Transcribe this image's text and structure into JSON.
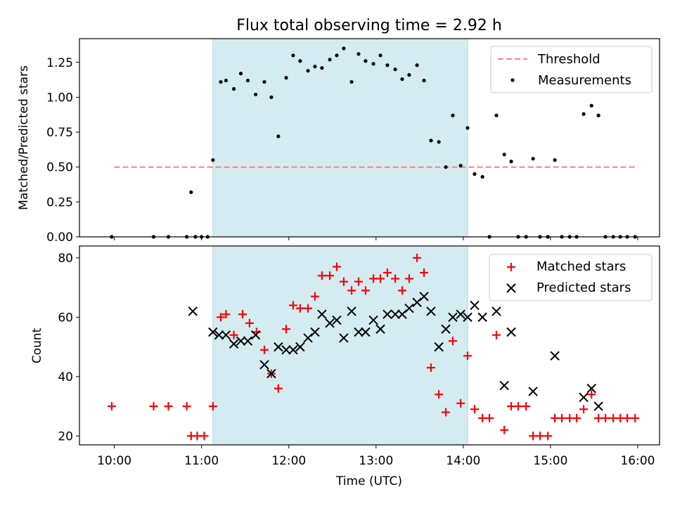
{
  "chart_data": [
    {
      "type": "scatter",
      "title": "Flux total observing time = 2.92 h",
      "xlabel": "",
      "ylabel": "Matched/Predicted stars",
      "ylim": [
        0,
        1.42
      ],
      "yticks": [
        "0.00",
        "0.25",
        "0.50",
        "0.75",
        "1.00",
        "1.25"
      ],
      "yticks_values": [
        0,
        0.25,
        0.5,
        0.75,
        1.0,
        1.25
      ],
      "xlim": [
        9.6,
        16.25
      ],
      "xticks_values": [
        10,
        11,
        12,
        13,
        14,
        15,
        16
      ],
      "shaded_interval": [
        11.13,
        14.05
      ],
      "shade_color": "#d4ebf1",
      "threshold": {
        "name": "Threshold",
        "value": 0.5,
        "x_range": [
          10.0,
          16.0
        ],
        "color": "#ff7f7f"
      },
      "series": [
        {
          "name": "Measurements",
          "color": "#000000",
          "x": [
            9.97,
            10.45,
            10.62,
            10.83,
            10.88,
            10.93,
            11.0,
            11.07,
            11.13,
            11.22,
            11.28,
            11.37,
            11.45,
            11.53,
            11.62,
            11.72,
            11.8,
            11.88,
            11.97,
            12.05,
            12.13,
            12.22,
            12.3,
            12.38,
            12.47,
            12.55,
            12.63,
            12.72,
            12.8,
            12.88,
            12.97,
            13.05,
            13.13,
            13.22,
            13.3,
            13.38,
            13.47,
            13.55,
            13.63,
            13.72,
            13.8,
            13.88,
            13.97,
            14.05,
            14.13,
            14.22,
            14.3,
            14.38,
            14.47,
            14.55,
            14.63,
            14.72,
            14.8,
            14.88,
            14.97,
            15.05,
            15.13,
            15.22,
            15.3,
            15.38,
            15.47,
            15.55,
            15.63,
            15.72,
            15.8,
            15.88,
            15.97
          ],
          "y": [
            0.0,
            0.0,
            0.0,
            0.0,
            0.32,
            0.0,
            0.0,
            0.0,
            0.55,
            1.11,
            1.12,
            1.06,
            1.17,
            1.12,
            1.02,
            1.11,
            1.0,
            0.72,
            1.14,
            1.3,
            1.26,
            1.19,
            1.22,
            1.21,
            1.27,
            1.3,
            1.35,
            1.11,
            1.31,
            1.26,
            1.24,
            1.3,
            1.23,
            1.2,
            1.13,
            1.16,
            1.23,
            1.12,
            0.69,
            0.68,
            0.5,
            0.87,
            0.51,
            0.78,
            0.45,
            0.43,
            0.0,
            0.87,
            0.59,
            0.54,
            0.0,
            0.0,
            0.56,
            0.0,
            0.0,
            0.55,
            0.0,
            0.0,
            0.0,
            0.88,
            0.94,
            0.87,
            0.0,
            0.0,
            0.0,
            0.0,
            0.0
          ]
        }
      ],
      "legend": {
        "placement": "top-right",
        "entries": [
          "Threshold",
          "Measurements"
        ]
      }
    },
    {
      "type": "scatter",
      "title": "",
      "xlabel": "Time (UTC)",
      "ylabel": "Count",
      "ylim": [
        17,
        84
      ],
      "yticks": [
        "20",
        "40",
        "60",
        "80"
      ],
      "yticks_values": [
        20,
        40,
        60,
        80
      ],
      "xlim": [
        9.6,
        16.25
      ],
      "xticks": [
        "10:00",
        "11:00",
        "12:00",
        "13:00",
        "14:00",
        "15:00",
        "16:00"
      ],
      "xticks_values": [
        10,
        11,
        12,
        13,
        14,
        15,
        16
      ],
      "shaded_interval": [
        11.13,
        14.05
      ],
      "series": [
        {
          "name": "Matched stars",
          "marker": "plus",
          "color": "#ff0000",
          "x": [
            9.97,
            10.45,
            10.62,
            10.83,
            10.88,
            10.95,
            11.03,
            11.13,
            11.22,
            11.28,
            11.37,
            11.47,
            11.55,
            11.63,
            11.72,
            11.8,
            11.88,
            11.97,
            12.05,
            12.13,
            12.22,
            12.3,
            12.38,
            12.47,
            12.55,
            12.63,
            12.72,
            12.8,
            12.88,
            12.97,
            13.05,
            13.13,
            13.22,
            13.3,
            13.38,
            13.47,
            13.55,
            13.63,
            13.72,
            13.8,
            13.88,
            13.97,
            14.05,
            14.13,
            14.22,
            14.3,
            14.38,
            14.47,
            14.55,
            14.63,
            14.72,
            14.8,
            14.88,
            14.97,
            15.05,
            15.13,
            15.22,
            15.3,
            15.38,
            15.47,
            15.55,
            15.63,
            15.72,
            15.8,
            15.88,
            15.97
          ],
          "y": [
            30,
            30,
            30,
            30,
            20,
            20,
            20,
            30,
            60,
            61,
            54,
            61,
            58,
            55,
            49,
            41,
            36,
            56,
            64,
            63,
            63,
            67,
            74,
            74,
            77,
            72,
            69,
            72,
            69,
            73,
            73,
            75,
            73,
            69,
            73,
            80,
            75,
            43,
            34,
            28,
            52,
            31,
            47,
            29,
            26,
            26,
            54,
            22,
            30,
            30,
            30,
            20,
            20,
            20,
            26,
            26,
            26,
            26,
            29,
            34,
            26,
            26,
            26,
            26,
            26,
            26
          ]
        },
        {
          "name": "Predicted stars",
          "marker": "x",
          "color": "#000000",
          "x": [
            10.9,
            11.13,
            11.2,
            11.28,
            11.37,
            11.45,
            11.53,
            11.62,
            11.72,
            11.8,
            11.88,
            11.97,
            12.05,
            12.13,
            12.22,
            12.3,
            12.38,
            12.47,
            12.55,
            12.63,
            12.72,
            12.8,
            12.88,
            12.97,
            13.05,
            13.13,
            13.22,
            13.3,
            13.38,
            13.47,
            13.55,
            13.63,
            13.72,
            13.8,
            13.88,
            13.97,
            14.05,
            14.13,
            14.22,
            14.38,
            14.47,
            14.55,
            14.8,
            15.05,
            15.38,
            15.47,
            15.55
          ],
          "y": [
            62,
            55,
            54,
            54,
            51,
            52,
            52,
            54,
            44,
            41,
            50,
            49,
            49,
            50,
            53,
            55,
            61,
            58,
            59,
            53,
            62,
            55,
            55,
            59,
            56,
            61,
            61,
            61,
            63,
            65,
            67,
            62,
            50,
            56,
            60,
            61,
            60,
            64,
            60,
            62,
            37,
            55,
            35,
            47,
            33,
            36,
            30
          ]
        }
      ],
      "legend": {
        "placement": "top-right",
        "entries": [
          "Matched stars",
          "Predicted stars"
        ]
      }
    }
  ]
}
